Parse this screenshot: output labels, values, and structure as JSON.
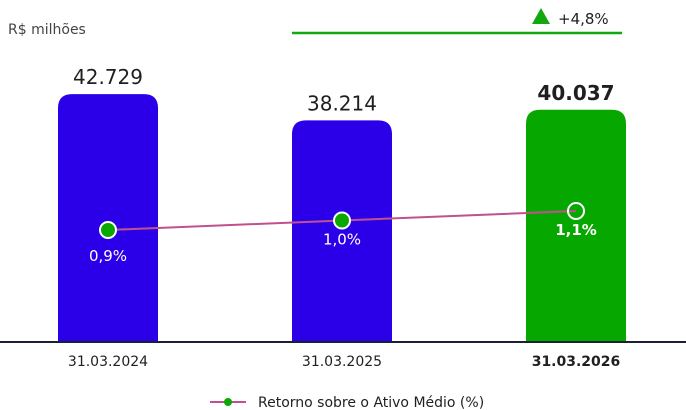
{
  "chart_data": {
    "type": "bar",
    "unit_label": "R$ milhões",
    "categories": [
      "31.03.2024",
      "31.03.2025",
      "31.03.2026"
    ],
    "highlight_index": 2,
    "series": [
      {
        "values": [
          42729,
          38214,
          40037
        ],
        "value_labels": [
          "42.729",
          "38.214",
          "40.037"
        ]
      },
      {
        "name": "Retorno sobre o Ativo Médio (%)",
        "type": "line",
        "values": [
          0.9,
          1.0,
          1.1
        ],
        "value_labels": [
          "0,9%",
          "1,0%",
          "1,1%"
        ]
      }
    ],
    "growth_label": "+4,8%",
    "legend_position": "bottom",
    "colors": {
      "bar": "#2b00e8",
      "bar_highlight": "#06a800",
      "line": "#c0508e",
      "marker": "#0aa800",
      "growth": "#12a80f",
      "axis": "#1a1f3a",
      "text": "#1f1f1f",
      "unit_text": "#444444"
    }
  }
}
